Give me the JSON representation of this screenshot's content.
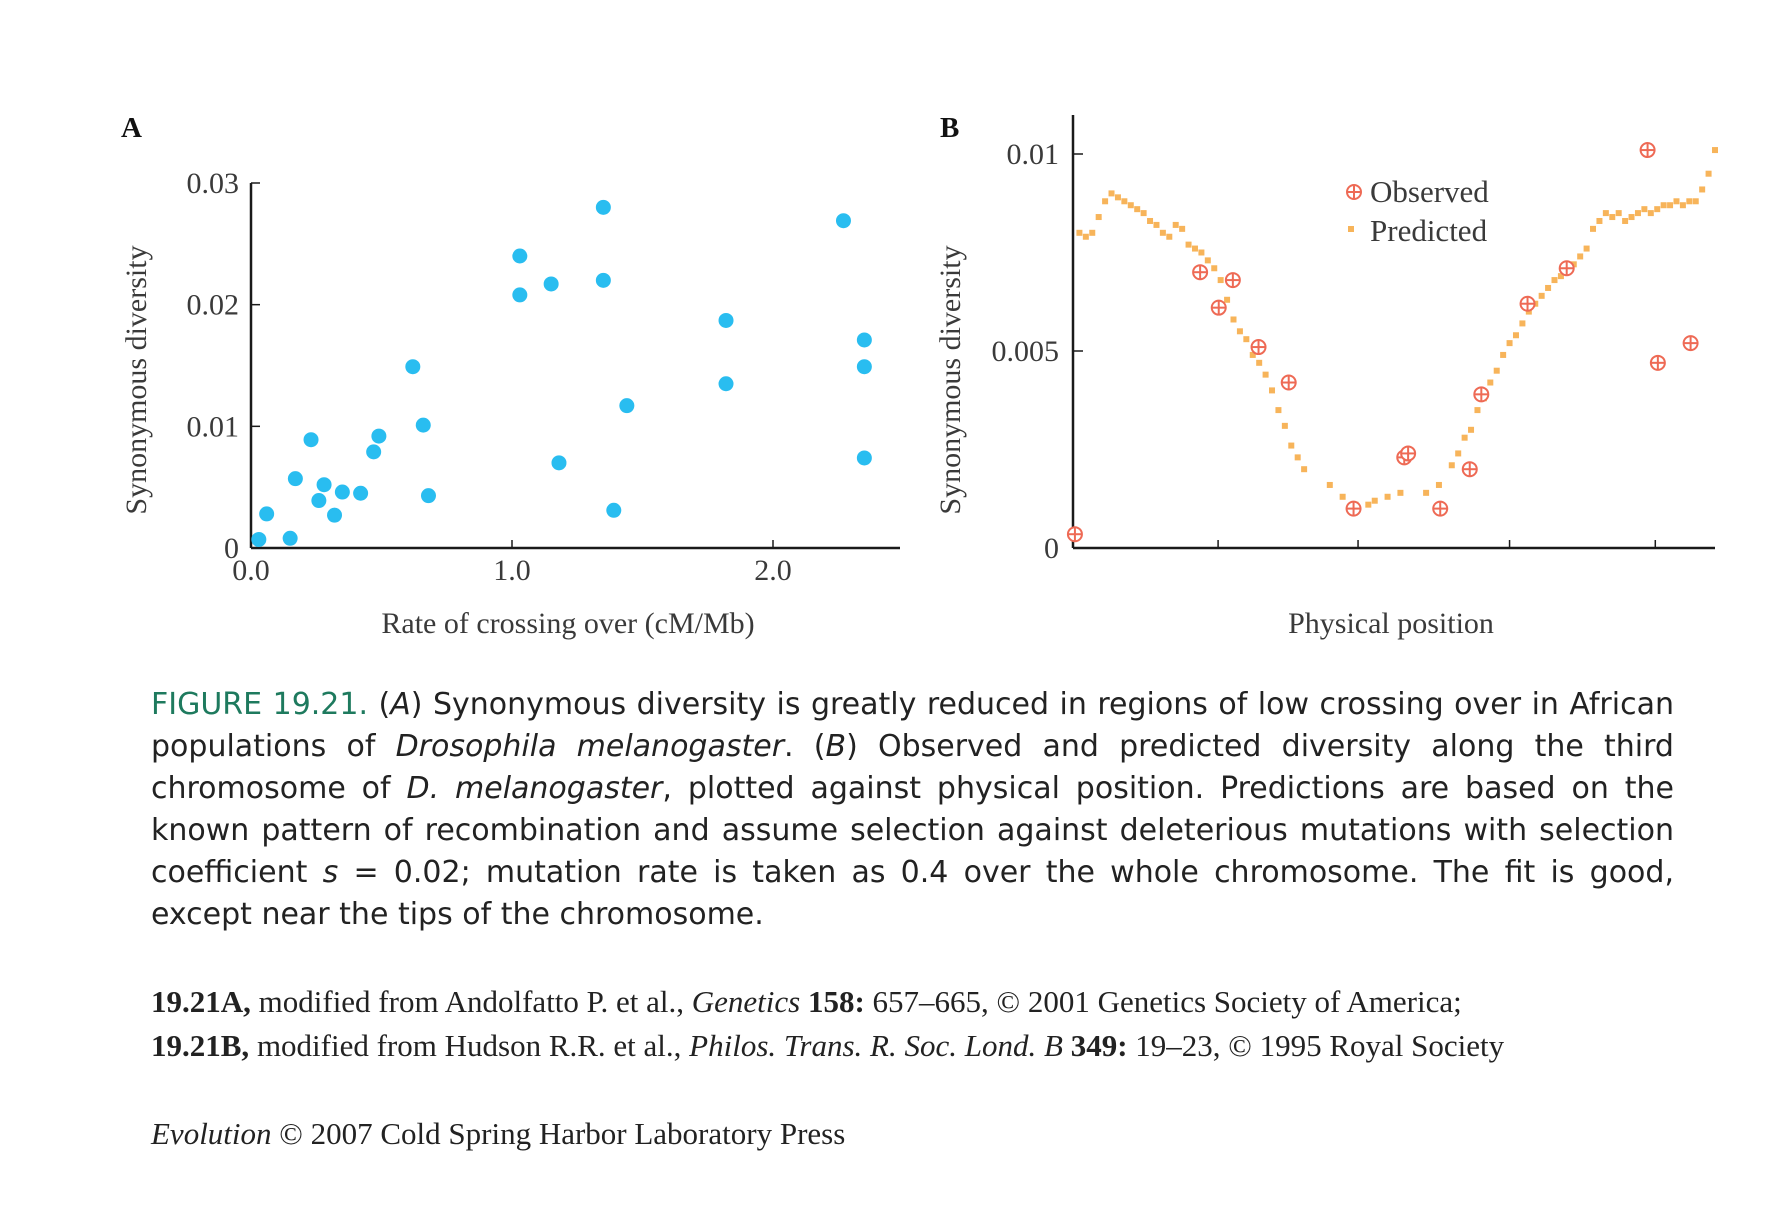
{
  "colors": {
    "scatter_point": "#29bdf0",
    "observed": "#ee6a55",
    "predicted": "#f7b45a",
    "axis": "#1a1a1a",
    "caption_label": "#1e7a5e"
  },
  "chart_data": [
    {
      "panel": "A",
      "type": "scatter",
      "xlabel": "Rate of crossing over (cM/Mb)",
      "ylabel": "Synonymous diversity",
      "xlim": [
        0,
        2.5
      ],
      "ylim": [
        0,
        0.03
      ],
      "x_ticks": [
        0.0,
        1.0,
        2.0
      ],
      "x_tick_labels": [
        "0.0",
        "1.0",
        "2.0"
      ],
      "y_ticks": [
        0,
        0.01,
        0.02,
        0.03
      ],
      "y_tick_labels": [
        "0",
        "0.01",
        "0.02",
        "0.03"
      ],
      "grid": false,
      "points": [
        {
          "x": 0.03,
          "y": 0.0007
        },
        {
          "x": 0.06,
          "y": 0.0028
        },
        {
          "x": 0.15,
          "y": 0.0008
        },
        {
          "x": 0.17,
          "y": 0.0057
        },
        {
          "x": 0.23,
          "y": 0.0089
        },
        {
          "x": 0.26,
          "y": 0.0039
        },
        {
          "x": 0.28,
          "y": 0.0052
        },
        {
          "x": 0.32,
          "y": 0.0027
        },
        {
          "x": 0.35,
          "y": 0.0046
        },
        {
          "x": 0.42,
          "y": 0.0045
        },
        {
          "x": 0.47,
          "y": 0.0079
        },
        {
          "x": 0.49,
          "y": 0.0092
        },
        {
          "x": 0.62,
          "y": 0.0149
        },
        {
          "x": 0.66,
          "y": 0.0101
        },
        {
          "x": 0.68,
          "y": 0.0043
        },
        {
          "x": 1.03,
          "y": 0.0208
        },
        {
          "x": 1.03,
          "y": 0.024
        },
        {
          "x": 1.15,
          "y": 0.0217
        },
        {
          "x": 1.18,
          "y": 0.007
        },
        {
          "x": 1.35,
          "y": 0.028
        },
        {
          "x": 1.35,
          "y": 0.022
        },
        {
          "x": 1.39,
          "y": 0.0031
        },
        {
          "x": 1.44,
          "y": 0.0117
        },
        {
          "x": 1.82,
          "y": 0.0187
        },
        {
          "x": 1.82,
          "y": 0.0135
        },
        {
          "x": 2.27,
          "y": 0.0269
        },
        {
          "x": 2.35,
          "y": 0.0171
        },
        {
          "x": 2.35,
          "y": 0.0149
        },
        {
          "x": 2.35,
          "y": 0.0074
        }
      ]
    },
    {
      "panel": "B",
      "type": "scatter",
      "xlabel": "Physical position",
      "ylabel": "Synonymous diversity",
      "xlim": [
        0,
        1
      ],
      "ylim": [
        0,
        0.011
      ],
      "x_ticks": [
        0.226,
        0.444,
        0.68,
        0.907
      ],
      "y_ticks": [
        0,
        0.005,
        0.01
      ],
      "y_tick_labels": [
        "0",
        "0.005",
        "0.01"
      ],
      "grid": false,
      "legend_position": "top-center",
      "legend": [
        "Observed",
        "Predicted"
      ],
      "series": [
        {
          "name": "Observed",
          "marker": "circled-plus",
          "points": [
            {
              "x": 0.003,
              "y": 0.00035
            },
            {
              "x": 0.198,
              "y": 0.007
            },
            {
              "x": 0.227,
              "y": 0.0061
            },
            {
              "x": 0.249,
              "y": 0.0068
            },
            {
              "x": 0.289,
              "y": 0.0051
            },
            {
              "x": 0.336,
              "y": 0.0042
            },
            {
              "x": 0.437,
              "y": 0.001
            },
            {
              "x": 0.516,
              "y": 0.0023
            },
            {
              "x": 0.522,
              "y": 0.0024
            },
            {
              "x": 0.572,
              "y": 0.001
            },
            {
              "x": 0.618,
              "y": 0.002
            },
            {
              "x": 0.636,
              "y": 0.0039
            },
            {
              "x": 0.708,
              "y": 0.0062
            },
            {
              "x": 0.769,
              "y": 0.0071
            },
            {
              "x": 0.895,
              "y": 0.0101
            },
            {
              "x": 0.911,
              "y": 0.0047
            },
            {
              "x": 0.962,
              "y": 0.0052
            }
          ]
        },
        {
          "name": "Predicted",
          "marker": "square",
          "points": [
            {
              "x": 0.01,
              "y": 0.008
            },
            {
              "x": 0.02,
              "y": 0.0079
            },
            {
              "x": 0.03,
              "y": 0.008
            },
            {
              "x": 0.04,
              "y": 0.0084
            },
            {
              "x": 0.05,
              "y": 0.0088
            },
            {
              "x": 0.06,
              "y": 0.009
            },
            {
              "x": 0.07,
              "y": 0.0089
            },
            {
              "x": 0.08,
              "y": 0.0088
            },
            {
              "x": 0.09,
              "y": 0.0087
            },
            {
              "x": 0.1,
              "y": 0.0086
            },
            {
              "x": 0.11,
              "y": 0.0085
            },
            {
              "x": 0.12,
              "y": 0.0083
            },
            {
              "x": 0.13,
              "y": 0.0082
            },
            {
              "x": 0.14,
              "y": 0.008
            },
            {
              "x": 0.15,
              "y": 0.0079
            },
            {
              "x": 0.16,
              "y": 0.0082
            },
            {
              "x": 0.17,
              "y": 0.0081
            },
            {
              "x": 0.18,
              "y": 0.0077
            },
            {
              "x": 0.19,
              "y": 0.0076
            },
            {
              "x": 0.2,
              "y": 0.0075
            },
            {
              "x": 0.21,
              "y": 0.0073
            },
            {
              "x": 0.22,
              "y": 0.0071
            },
            {
              "x": 0.23,
              "y": 0.0068
            },
            {
              "x": 0.24,
              "y": 0.0063
            },
            {
              "x": 0.25,
              "y": 0.0058
            },
            {
              "x": 0.26,
              "y": 0.0055
            },
            {
              "x": 0.27,
              "y": 0.0053
            },
            {
              "x": 0.28,
              "y": 0.0049
            },
            {
              "x": 0.29,
              "y": 0.0047
            },
            {
              "x": 0.3,
              "y": 0.0044
            },
            {
              "x": 0.31,
              "y": 0.004
            },
            {
              "x": 0.32,
              "y": 0.0035
            },
            {
              "x": 0.33,
              "y": 0.0031
            },
            {
              "x": 0.34,
              "y": 0.0026
            },
            {
              "x": 0.35,
              "y": 0.0023
            },
            {
              "x": 0.36,
              "y": 0.002
            },
            {
              "x": 0.4,
              "y": 0.0016
            },
            {
              "x": 0.42,
              "y": 0.0013
            },
            {
              "x": 0.44,
              "y": 0.0011
            },
            {
              "x": 0.46,
              "y": 0.0011
            },
            {
              "x": 0.47,
              "y": 0.0012
            },
            {
              "x": 0.49,
              "y": 0.0013
            },
            {
              "x": 0.51,
              "y": 0.0014
            },
            {
              "x": 0.55,
              "y": 0.0014
            },
            {
              "x": 0.57,
              "y": 0.0016
            },
            {
              "x": 0.59,
              "y": 0.0021
            },
            {
              "x": 0.6,
              "y": 0.0024
            },
            {
              "x": 0.61,
              "y": 0.0028
            },
            {
              "x": 0.62,
              "y": 0.003
            },
            {
              "x": 0.63,
              "y": 0.0035
            },
            {
              "x": 0.64,
              "y": 0.0038
            },
            {
              "x": 0.65,
              "y": 0.0042
            },
            {
              "x": 0.66,
              "y": 0.0045
            },
            {
              "x": 0.67,
              "y": 0.0049
            },
            {
              "x": 0.68,
              "y": 0.0052
            },
            {
              "x": 0.69,
              "y": 0.0054
            },
            {
              "x": 0.7,
              "y": 0.0057
            },
            {
              "x": 0.71,
              "y": 0.006
            },
            {
              "x": 0.72,
              "y": 0.0062
            },
            {
              "x": 0.73,
              "y": 0.0064
            },
            {
              "x": 0.74,
              "y": 0.0066
            },
            {
              "x": 0.75,
              "y": 0.0068
            },
            {
              "x": 0.76,
              "y": 0.0069
            },
            {
              "x": 0.77,
              "y": 0.007
            },
            {
              "x": 0.78,
              "y": 0.0072
            },
            {
              "x": 0.79,
              "y": 0.0074
            },
            {
              "x": 0.8,
              "y": 0.0076
            },
            {
              "x": 0.81,
              "y": 0.0081
            },
            {
              "x": 0.82,
              "y": 0.0083
            },
            {
              "x": 0.83,
              "y": 0.0085
            },
            {
              "x": 0.84,
              "y": 0.0084
            },
            {
              "x": 0.85,
              "y": 0.0085
            },
            {
              "x": 0.86,
              "y": 0.0083
            },
            {
              "x": 0.87,
              "y": 0.0084
            },
            {
              "x": 0.88,
              "y": 0.0085
            },
            {
              "x": 0.89,
              "y": 0.0086
            },
            {
              "x": 0.9,
              "y": 0.0085
            },
            {
              "x": 0.91,
              "y": 0.0086
            },
            {
              "x": 0.92,
              "y": 0.0087
            },
            {
              "x": 0.93,
              "y": 0.0087
            },
            {
              "x": 0.94,
              "y": 0.0088
            },
            {
              "x": 0.95,
              "y": 0.0087
            },
            {
              "x": 0.96,
              "y": 0.0088
            },
            {
              "x": 0.97,
              "y": 0.0088
            },
            {
              "x": 0.98,
              "y": 0.0091
            },
            {
              "x": 0.99,
              "y": 0.0095
            },
            {
              "x": 1.0,
              "y": 0.0101
            }
          ]
        }
      ]
    }
  ],
  "caption": {
    "label": "FIGURE 19.21.",
    "p1": " (",
    "a": "A",
    "p2": ") Synonymous diversity is greatly reduced in regions of low crossing over in African populations of ",
    "species": "Drosophila melanogaster",
    "p3": ". (",
    "b": "B",
    "p4": ") Observed and predicted diversity along the third chromosome of ",
    "species_short": "D. melanogaster",
    "p5": ", plotted against physical position. Predictions are based on the known pattern of recombination and assume selection against deleterious mutations with selection coefficient ",
    "s": "s",
    "p6": " = 0.02; mutation rate is taken as 0.4 over the whole chromosome. The fit is good, except near the tips of the chromosome."
  },
  "credits": {
    "a_label": "19.21A,",
    "a_text": " modified from Andolfatto P. et al., ",
    "a_journal": "Genetics",
    "a_vol": " 158:",
    "a_rest": " 657–665, © 2001 Genetics Society of America;",
    "b_label": "19.21B,",
    "b_text": " modified from Hudson R.R. et al., ",
    "b_journal": "Philos. Trans. R. Soc. Lond. B",
    "b_vol": " 349:",
    "b_rest": " 19–23, © 1995 Royal Society"
  },
  "footer": {
    "book": "Evolution",
    "rest": " © 2007 Cold Spring Harbor Laboratory Press"
  }
}
